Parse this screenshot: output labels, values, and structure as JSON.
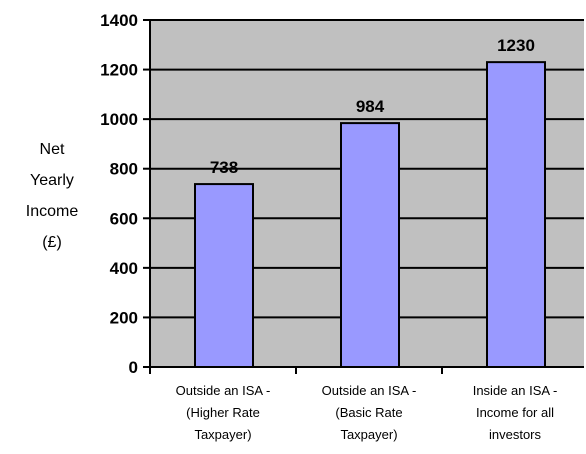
{
  "chart_data": {
    "type": "bar",
    "categories": [
      [
        "Outside an ISA -",
        "(Higher Rate",
        "Taxpayer)"
      ],
      [
        "Outside an ISA -",
        "(Basic Rate",
        "Taxpayer)"
      ],
      [
        "Inside an ISA -",
        "Income for all",
        "investors"
      ]
    ],
    "values": [
      738,
      984,
      1230
    ],
    "data_labels": [
      "738",
      "984",
      "1230"
    ],
    "ylabel_lines": [
      "Net",
      "Yearly",
      "Income",
      "(£)"
    ],
    "xlabel": "",
    "title": "",
    "ylim": [
      0,
      1400
    ],
    "yticks": [
      0,
      200,
      400,
      600,
      800,
      1000,
      1200,
      1400
    ],
    "ytick_labels": [
      "0",
      "200",
      "400",
      "600",
      "800",
      "1000",
      "1200",
      "1400"
    ],
    "grid": true,
    "legend": "none",
    "colors": {
      "plot_background": "#c0c0c0",
      "bar_fill": "#9999ff",
      "bar_stroke": "#000000",
      "gridline": "#000000",
      "axis": "#000000"
    }
  }
}
